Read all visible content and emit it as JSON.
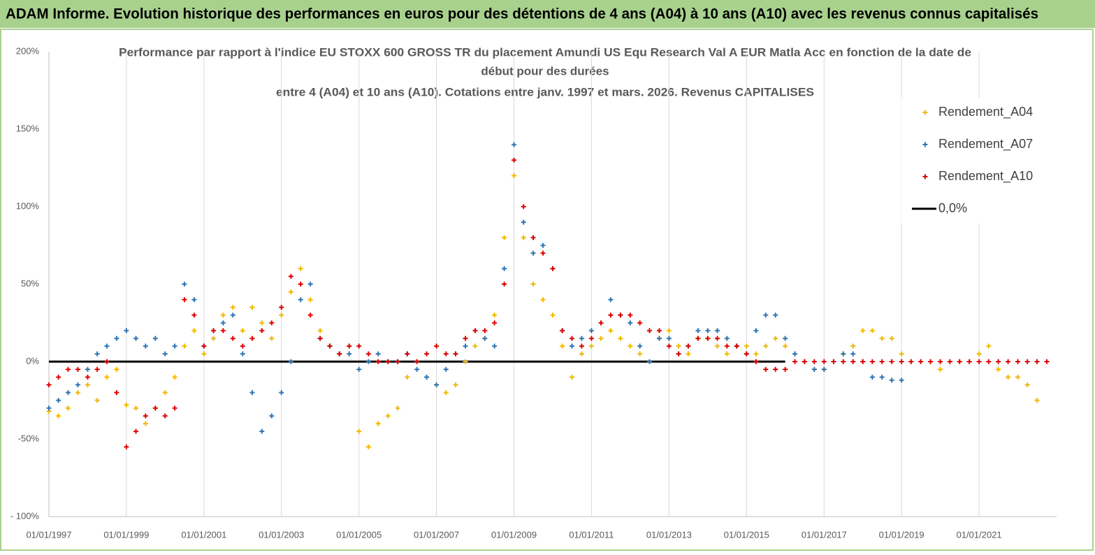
{
  "header": {
    "title": "ADAM Informe. Evolution historique des performances en euros pour des détentions de 4 ans (A04) à 10 ans (A10) avec les revenus connus capitalisés"
  },
  "chart_data": {
    "type": "scatter",
    "title_lines": [
      "Performance par rapport à l'indice EU STOXX 600 GROSS TR  du placement Amundi US Equ Research Val A EUR Matla Acc en fonction de la date de",
      "début pour des durées",
      "entre 4 (A04) et 10 ans (A10). Cotations entre janv. 1997 et mars. 2026. Revenus CAPITALISES"
    ],
    "xlim": [
      "1997-01-01",
      "2023-01-01"
    ],
    "xticks": [
      {
        "value": "1997-01-01",
        "label": "01/01/1997"
      },
      {
        "value": "1999-01-01",
        "label": "01/01/1999"
      },
      {
        "value": "2001-01-01",
        "label": "01/01/2001"
      },
      {
        "value": "2003-01-01",
        "label": "01/01/2003"
      },
      {
        "value": "2005-01-01",
        "label": "01/01/2005"
      },
      {
        "value": "2007-01-01",
        "label": "01/01/2007"
      },
      {
        "value": "2009-01-01",
        "label": "01/01/2009"
      },
      {
        "value": "2011-01-01",
        "label": "01/01/2011"
      },
      {
        "value": "2013-01-01",
        "label": "01/01/2013"
      },
      {
        "value": "2015-01-01",
        "label": "01/01/2015"
      },
      {
        "value": "2017-01-01",
        "label": "01/01/2017"
      },
      {
        "value": "2019-01-01",
        "label": "01/01/2019"
      },
      {
        "value": "2021-01-01",
        "label": "01/01/2021"
      }
    ],
    "ylim": [
      -100,
      200
    ],
    "yticks": [
      {
        "value": -100,
        "label": "- 100%"
      },
      {
        "value": -50,
        "label": "-50%"
      },
      {
        "value": 0,
        "label": "0%"
      },
      {
        "value": 50,
        "label": "50%"
      },
      {
        "value": 100,
        "label": "100%"
      },
      {
        "value": 150,
        "label": "150%"
      },
      {
        "value": 200,
        "label": "200%"
      }
    ],
    "x": [
      "1997-01-01",
      "1997-04-01",
      "1997-07-01",
      "1997-10-01",
      "1998-01-01",
      "1998-04-01",
      "1998-07-01",
      "1998-10-01",
      "1999-01-01",
      "1999-04-01",
      "1999-07-01",
      "1999-10-01",
      "2000-01-01",
      "2000-04-01",
      "2000-07-01",
      "2000-10-01",
      "2001-01-01",
      "2001-04-01",
      "2001-07-01",
      "2001-10-01",
      "2002-01-01",
      "2002-04-01",
      "2002-07-01",
      "2002-10-01",
      "2003-01-01",
      "2003-04-01",
      "2003-07-01",
      "2003-10-01",
      "2004-01-01",
      "2004-04-01",
      "2004-07-01",
      "2004-10-01",
      "2005-01-01",
      "2005-04-01",
      "2005-07-01",
      "2005-10-01",
      "2006-01-01",
      "2006-04-01",
      "2006-07-01",
      "2006-10-01",
      "2007-01-01",
      "2007-04-01",
      "2007-07-01",
      "2007-10-01",
      "2008-01-01",
      "2008-04-01",
      "2008-07-01",
      "2008-10-01",
      "2009-01-01",
      "2009-04-01",
      "2009-07-01",
      "2009-10-01",
      "2010-01-01",
      "2010-04-01",
      "2010-07-01",
      "2010-10-01",
      "2011-01-01",
      "2011-04-01",
      "2011-07-01",
      "2011-10-01",
      "2012-01-01",
      "2012-04-01",
      "2012-07-01",
      "2012-10-01",
      "2013-01-01",
      "2013-04-01",
      "2013-07-01",
      "2013-10-01",
      "2014-01-01",
      "2014-04-01",
      "2014-07-01",
      "2014-10-01",
      "2015-01-01",
      "2015-04-01",
      "2015-07-01",
      "2015-10-01",
      "2016-01-01",
      "2016-04-01",
      "2016-07-01",
      "2016-10-01",
      "2017-01-01",
      "2017-04-01",
      "2017-07-01",
      "2017-10-01",
      "2018-01-01",
      "2018-04-01",
      "2018-07-01",
      "2018-10-01",
      "2019-01-01",
      "2019-04-01",
      "2019-07-01",
      "2019-10-01",
      "2020-01-01",
      "2020-04-01",
      "2020-07-01",
      "2020-10-01",
      "2021-01-01",
      "2021-04-01",
      "2021-07-01",
      "2021-10-01",
      "2022-01-01",
      "2022-04-01",
      "2022-07-01",
      "2022-10-01"
    ],
    "series": [
      {
        "name": "Rendement_A04",
        "color": "#f2b800",
        "values": [
          -32,
          -35,
          -30,
          -20,
          -15,
          -25,
          -10,
          -5,
          -28,
          -30,
          -40,
          -30,
          -20,
          -10,
          10,
          20,
          5,
          15,
          30,
          35,
          20,
          35,
          25,
          15,
          30,
          45,
          60,
          40,
          20,
          10,
          5,
          10,
          -45,
          -55,
          -40,
          -35,
          -30,
          -10,
          0,
          -10,
          -15,
          -20,
          -15,
          0,
          10,
          15,
          30,
          80,
          120,
          80,
          50,
          40,
          30,
          10,
          -10,
          5,
          10,
          15,
          20,
          15,
          10,
          5,
          0,
          15,
          20,
          10,
          5,
          15,
          15,
          10,
          5,
          10,
          10,
          5,
          10,
          15,
          10,
          5,
          0,
          -5,
          -5,
          0,
          5,
          10,
          20,
          20,
          15,
          15,
          5,
          0,
          0,
          0,
          -5,
          0,
          0,
          0,
          5,
          10,
          -5,
          -10,
          -10,
          -15,
          -25,
          null
        ]
      },
      {
        "name": "Rendement_A07",
        "color": "#2e75b6",
        "values": [
          -30,
          -25,
          -20,
          -15,
          -5,
          5,
          10,
          15,
          20,
          15,
          10,
          15,
          5,
          10,
          50,
          40,
          10,
          20,
          25,
          30,
          5,
          -20,
          -45,
          -35,
          -20,
          0,
          40,
          50,
          15,
          10,
          5,
          5,
          -5,
          0,
          5,
          0,
          0,
          5,
          -5,
          -10,
          -15,
          -5,
          5,
          10,
          20,
          15,
          10,
          60,
          140,
          90,
          70,
          75,
          60,
          20,
          10,
          15,
          20,
          25,
          40,
          30,
          25,
          10,
          0,
          15,
          15,
          5,
          10,
          20,
          20,
          20,
          15,
          10,
          5,
          20,
          30,
          30,
          15,
          5,
          0,
          -5,
          -5,
          0,
          5,
          5,
          0,
          -10,
          -10,
          -12,
          -12,
          null,
          null,
          null,
          null,
          null,
          null,
          null,
          null,
          null,
          null,
          null,
          null,
          null,
          null,
          null
        ]
      },
      {
        "name": "Rendement_A10",
        "color": "#e00000",
        "values": [
          -15,
          -10,
          -5,
          -5,
          -10,
          -5,
          0,
          -20,
          -55,
          -45,
          -35,
          -30,
          -35,
          -30,
          40,
          30,
          10,
          20,
          20,
          15,
          10,
          15,
          20,
          25,
          35,
          55,
          50,
          30,
          15,
          10,
          5,
          10,
          10,
          5,
          0,
          0,
          0,
          5,
          0,
          5,
          10,
          5,
          5,
          15,
          20,
          20,
          25,
          50,
          130,
          100,
          80,
          70,
          60,
          20,
          15,
          10,
          15,
          25,
          30,
          30,
          30,
          25,
          20,
          20,
          10,
          5,
          10,
          15,
          15,
          15,
          10,
          10,
          5,
          0,
          -5,
          -5,
          -5,
          0,
          0,
          0,
          0,
          0,
          0,
          0,
          0,
          0,
          0,
          0,
          0,
          0,
          0,
          0,
          0,
          0,
          0,
          0,
          0,
          0,
          0,
          0,
          0,
          0,
          0,
          0
        ]
      }
    ],
    "reference_line": {
      "name": "0,0%",
      "color": "#000000",
      "value": 0,
      "x": [
        "1997-01-01",
        "2016-01-01"
      ]
    },
    "grid": true,
    "legend": "top-right"
  }
}
